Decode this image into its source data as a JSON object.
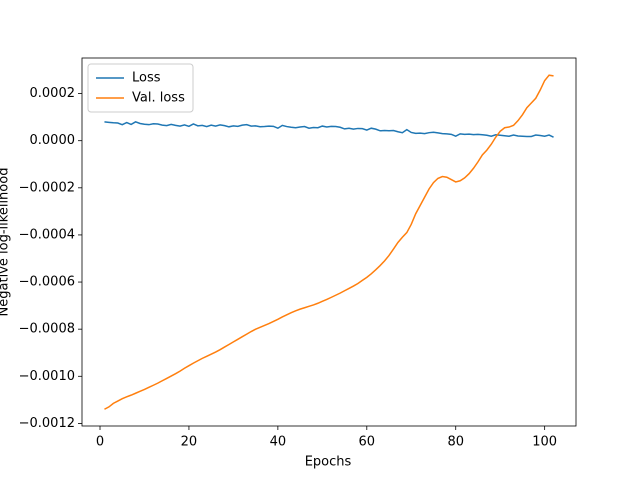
{
  "chart_data": {
    "type": "line",
    "xlabel": "Epochs",
    "ylabel": "Negative log-likelihood",
    "xlim": [
      -4.05,
      107.05
    ],
    "ylim": [
      -0.001211,
      0.000351
    ],
    "xticks": [
      0,
      20,
      40,
      60,
      80,
      100
    ],
    "yticks": [
      {
        "value": 0.0002,
        "label": "0.0002"
      },
      {
        "value": 0,
        "label": "0.0000"
      },
      {
        "value": -0.0002,
        "label": "−0.0002"
      },
      {
        "value": -0.0004,
        "label": "−0.0004"
      },
      {
        "value": -0.0006,
        "label": "−0.0006"
      },
      {
        "value": -0.0008,
        "label": "−0.0008"
      },
      {
        "value": -0.001,
        "label": "−0.0010"
      },
      {
        "value": -0.0012,
        "label": "−0.0012"
      }
    ],
    "grid": false,
    "legend": "upper left",
    "x": [
      1,
      2,
      3,
      4,
      5,
      6,
      7,
      8,
      9,
      10,
      11,
      12,
      13,
      14,
      15,
      16,
      17,
      18,
      19,
      20,
      21,
      22,
      23,
      24,
      25,
      26,
      27,
      28,
      29,
      30,
      31,
      32,
      33,
      34,
      35,
      36,
      37,
      38,
      39,
      40,
      41,
      42,
      43,
      44,
      45,
      46,
      47,
      48,
      49,
      50,
      51,
      52,
      53,
      54,
      55,
      56,
      57,
      58,
      59,
      60,
      61,
      62,
      63,
      64,
      65,
      66,
      67,
      68,
      69,
      70,
      71,
      72,
      73,
      74,
      75,
      76,
      77,
      78,
      79,
      80,
      81,
      82,
      83,
      84,
      85,
      86,
      87,
      88,
      89,
      90,
      91,
      92,
      93,
      94,
      95,
      96,
      97,
      98,
      99,
      100,
      101,
      102
    ],
    "series": [
      {
        "name": "Loss",
        "color": "#1f77b4",
        "values": [
          8e-05,
          7.8e-05,
          7.6e-05,
          7.5e-05,
          6.8e-05,
          7.7e-05,
          6.9e-05,
          8e-05,
          7.3e-05,
          7e-05,
          6.8e-05,
          7.2e-05,
          7.1e-05,
          6.6e-05,
          6.4e-05,
          6.9e-05,
          6.5e-05,
          6.2e-05,
          6.7e-05,
          6.1e-05,
          7.1e-05,
          6.3e-05,
          6.5e-05,
          6e-05,
          6.6e-05,
          6.2e-05,
          6.7e-05,
          6.4e-05,
          5.9e-05,
          6.3e-05,
          6.1e-05,
          6.6e-05,
          6.8e-05,
          6.2e-05,
          6.3e-05,
          5.9e-05,
          6e-05,
          6.2e-05,
          6.1e-05,
          5.3e-05,
          6.5e-05,
          6e-05,
          5.7e-05,
          5.5e-05,
          5.8e-05,
          6e-05,
          5.3e-05,
          5.6e-05,
          5.5e-05,
          6.2e-05,
          5.8e-05,
          6.1e-05,
          6e-05,
          5.7e-05,
          5e-05,
          5.3e-05,
          4.9e-05,
          5.2e-05,
          5.1e-05,
          4.5e-05,
          5.3e-05,
          4.9e-05,
          4.2e-05,
          4.3e-05,
          4.2e-05,
          4.3e-05,
          3.8e-05,
          3.4e-05,
          4.7e-05,
          3.5e-05,
          3.1e-05,
          3.2e-05,
          3e-05,
          3.4e-05,
          3.6e-05,
          3.3e-05,
          3e-05,
          2.9e-05,
          2.7e-05,
          1.9e-05,
          2.9e-05,
          2.7e-05,
          2.8e-05,
          2.6e-05,
          2.7e-05,
          2.5e-05,
          2.3e-05,
          1.9e-05,
          2.5e-05,
          2.3e-05,
          2.1e-05,
          1.9e-05,
          2.4e-05,
          2e-05,
          1.9e-05,
          1.8e-05,
          1.8e-05,
          2.4e-05,
          2.2e-05,
          1.9e-05,
          2.4e-05,
          1.5e-05
        ]
      },
      {
        "name": "Val. loss",
        "color": "#ff7f0e",
        "values": [
          -0.00114,
          -0.00113,
          -0.001115,
          -0.001105,
          -0.001095,
          -0.001087,
          -0.00108,
          -0.001072,
          -0.001064,
          -0.001056,
          -0.001047,
          -0.001038,
          -0.001029,
          -0.001019,
          -0.001009,
          -0.000999,
          -0.000989,
          -0.000978,
          -0.000966,
          -0.000955,
          -0.000944,
          -0.000934,
          -0.000924,
          -0.000915,
          -0.000906,
          -0.000897,
          -0.000887,
          -0.000876,
          -0.000865,
          -0.000854,
          -0.000843,
          -0.000832,
          -0.000821,
          -0.00081,
          -0.0008,
          -0.000792,
          -0.000784,
          -0.000776,
          -0.000767,
          -0.000758,
          -0.000748,
          -0.000739,
          -0.00073,
          -0.000722,
          -0.000715,
          -0.000709,
          -0.000703,
          -0.000697,
          -0.00069,
          -0.000682,
          -0.000674,
          -0.000665,
          -0.000656,
          -0.000647,
          -0.000637,
          -0.000627,
          -0.000617,
          -0.000606,
          -0.000593,
          -0.00058,
          -0.000565,
          -0.000548,
          -0.00053,
          -0.00051,
          -0.000487,
          -0.00046,
          -0.000432,
          -0.00041,
          -0.00039,
          -0.000355,
          -0.00031,
          -0.000275,
          -0.00024,
          -0.000205,
          -0.000178,
          -0.00016,
          -0.000152,
          -0.000155,
          -0.000165,
          -0.000175,
          -0.00017,
          -0.000158,
          -0.00014,
          -0.000117,
          -9e-05,
          -6e-05,
          -4e-05,
          -1.5e-05,
          1.5e-05,
          4e-05,
          5.5e-05,
          5.8e-05,
          6.5e-05,
          8.5e-05,
          0.00011,
          0.00014,
          0.00016,
          0.00018,
          0.000215,
          0.000255,
          0.000278,
          0.000275
        ]
      }
    ]
  }
}
